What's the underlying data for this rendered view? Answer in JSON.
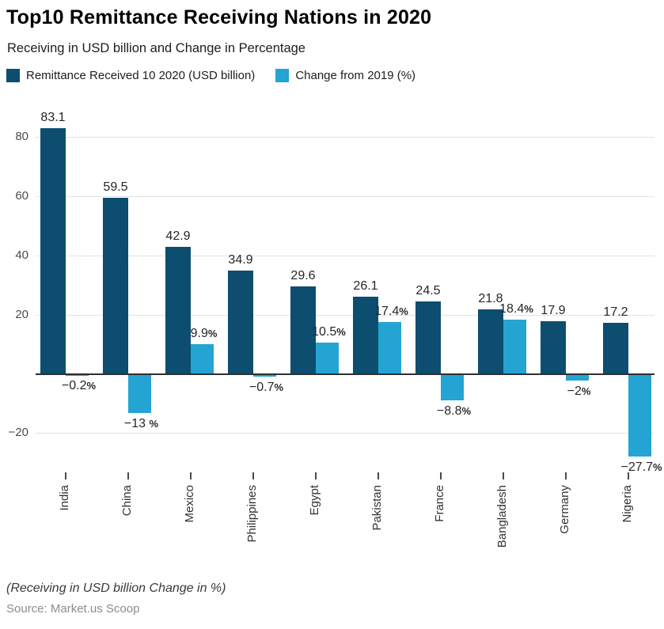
{
  "header": {
    "title": "Top10 Remittance Receiving Nations in 2020",
    "subtitle": "Receiving in USD billion and Change in Percentage"
  },
  "legend": [
    {
      "label": "Remittance Received 10 2020 (USD billion)",
      "color": "#0d4d70"
    },
    {
      "label": "Change from 2019 (%)",
      "color": "#24a4d2"
    }
  ],
  "chart_data": {
    "type": "bar",
    "categories": [
      "India",
      "China",
      "Mexico",
      "Philippines",
      "Egypt",
      "Pakistan",
      "France",
      "Bangladesh",
      "Germany",
      "Nigeria"
    ],
    "series": [
      {
        "name": "Remittance Received 10 2020 (USD billion)",
        "color": "#0d4d70",
        "values": [
          83.1,
          59.5,
          42.9,
          34.9,
          29.6,
          26.1,
          24.5,
          21.8,
          17.9,
          17.2
        ],
        "labels": [
          "83.1",
          "59.5",
          "42.9",
          "34.9",
          "29.6",
          "26.1",
          "24.5",
          "21.8",
          "17.9",
          "17.2"
        ]
      },
      {
        "name": "Change from 2019 (%)",
        "color": "#24a4d2",
        "values": [
          -0.2,
          -13,
          9.9,
          -0.7,
          10.5,
          17.4,
          -8.8,
          18.4,
          -2,
          -27.7
        ],
        "labels": [
          "−0.2%",
          "−13 %",
          "9.9%",
          "−0.7%",
          "10.5%",
          "17.4%",
          "−8.8%",
          "18.4%",
          "−2%",
          "−27.7%"
        ]
      }
    ],
    "y_axis": {
      "ticks": [
        80,
        60,
        40,
        20,
        -20
      ],
      "tick_labels": [
        "80",
        "60",
        "40",
        "20",
        "−20"
      ]
    },
    "grid": true,
    "legend_position": "top",
    "ylim": [
      -32,
      88
    ],
    "title": "Top10 Remittance Receiving Nations in 2020",
    "xlabel": "",
    "ylabel": ""
  },
  "footer": {
    "note": "(Receiving in USD billion Change in %)",
    "source": "Source: Market.us Scoop"
  }
}
